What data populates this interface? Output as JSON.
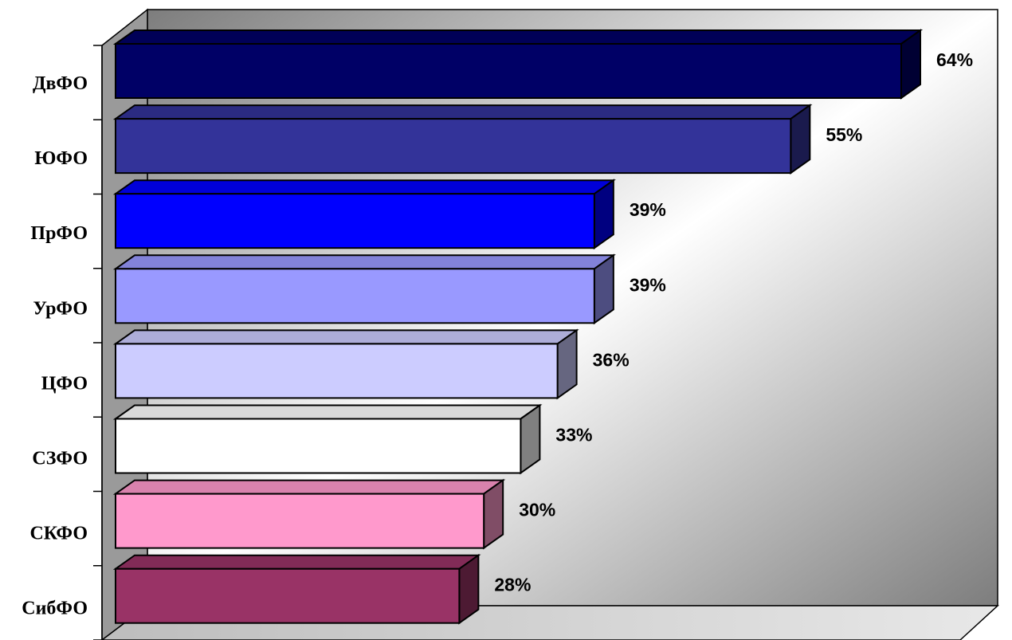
{
  "chart_data": {
    "type": "bar",
    "orientation": "horizontal",
    "three_d": true,
    "categories": [
      "ДвФО",
      "ЮФО",
      "ПрФО",
      "УрФО",
      "ЦФО",
      "СЗФО",
      "СКФО",
      "СибФО"
    ],
    "values": [
      64,
      55,
      39,
      39,
      36,
      33,
      30,
      28
    ],
    "value_labels": [
      "64%",
      "55%",
      "39%",
      "39%",
      "36%",
      "33%",
      "30%",
      "28%"
    ],
    "bar_colors": [
      "#000066",
      "#333399",
      "#0000ff",
      "#9999ff",
      "#ccccff",
      "#ffffff",
      "#ff99cc",
      "#993366"
    ],
    "title": "",
    "xlabel": "",
    "ylabel": "",
    "xlim": [
      0,
      64
    ],
    "grid": false,
    "legend": "none"
  }
}
